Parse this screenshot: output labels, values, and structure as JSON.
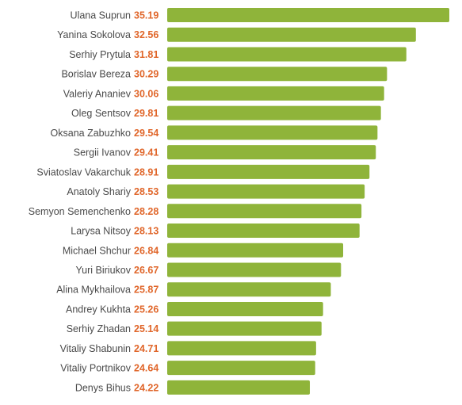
{
  "colors": {
    "bar": "#8fb43a",
    "value_text": "#e0662a",
    "label_text": "#4a4a4a",
    "background": "#ffffff"
  },
  "chart_data": {
    "type": "bar",
    "orientation": "horizontal",
    "title": "",
    "xlabel": "",
    "ylabel": "",
    "grid": false,
    "categories": [
      "Ulana Suprun",
      "Yanina Sokolova",
      "Serhiy Prytula",
      "Borislav Bereza",
      "Valeriy Ananiev",
      "Oleg Sentsov",
      "Oksana Zabuzhko",
      "Sergii Ivanov",
      "Sviatoslav Vakarchuk",
      "Anatoly Shariy",
      "Semyon Semenchenko",
      "Larysa Nitsoy",
      "Michael Shchur",
      "Yuri Biriukov",
      "Alina Mykhailova",
      "Andrey Kukhta",
      "Serhiy Zhadan",
      "Vitaliy Shabunin",
      "Vitaliy Portnikov",
      "Denys Bihus"
    ],
    "values": [
      35.19,
      32.56,
      31.81,
      30.29,
      30.06,
      29.81,
      29.54,
      29.41,
      28.91,
      28.53,
      28.28,
      28.13,
      26.84,
      26.67,
      25.87,
      25.26,
      25.14,
      24.71,
      24.64,
      24.22
    ],
    "value_labels": [
      "35.19",
      "32.56",
      "31.81",
      "30.29",
      "30.06",
      "29.81",
      "29.54",
      "29.41",
      "28.91",
      "28.53",
      "28.28",
      "28.13",
      "26.84",
      "26.67",
      "25.87",
      "25.26",
      "25.14",
      "24.71",
      "24.64",
      "24.22"
    ],
    "xlim": [
      0,
      35.19
    ]
  }
}
